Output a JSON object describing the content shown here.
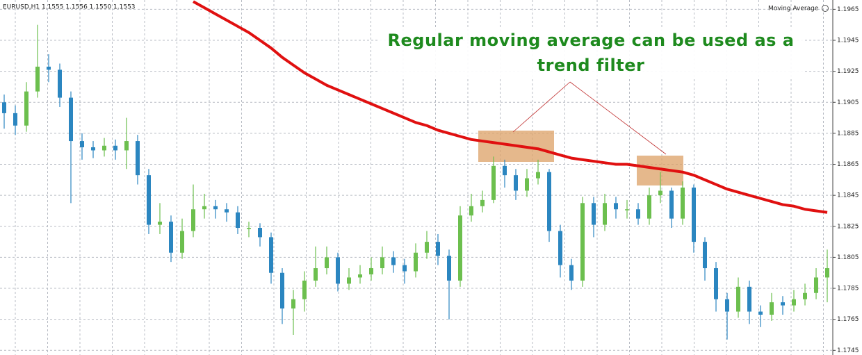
{
  "chart_data": {
    "type": "candlestick",
    "symbol_info": "EURUSD,H1  1.1555 1.1556 1.1550 1.1553",
    "indicator_label": "Moving Average",
    "annotation": "Regular moving average can be used as a trend filter",
    "annotation_color": "#1e8a1e",
    "up_color": "#6cbf4e",
    "down_color": "#2b86c0",
    "ma_color": "#e01010",
    "grid": true,
    "ylim": [
      1.1742,
      1.1971
    ],
    "yticks": [
      1.1965,
      1.1945,
      1.1925,
      1.1905,
      1.1885,
      1.1865,
      1.1845,
      1.1825,
      1.1805,
      1.1785,
      1.1765,
      1.1745
    ],
    "open": [
      1.1905,
      1.1898,
      1.189,
      1.1912,
      1.1928,
      1.1926,
      1.1908,
      1.188,
      1.1876,
      1.1874,
      1.1877,
      1.1874,
      1.188,
      1.1858,
      1.1826,
      1.1828,
      1.1808,
      1.1822,
      1.1836,
      1.1838,
      1.1836,
      1.1834,
      1.1824,
      1.1824,
      1.1818,
      1.1795,
      1.1772,
      1.1778,
      1.179,
      1.1798,
      1.1805,
      1.1788,
      1.1792,
      1.1794,
      1.1798,
      1.1805,
      1.18,
      1.1796,
      1.1808,
      1.1815,
      1.1806,
      1.179,
      1.1832,
      1.1838,
      1.1842,
      1.1864,
      1.1858,
      1.1848,
      1.1856,
      1.186,
      1.1822,
      1.18,
      1.179,
      1.184,
      1.1826,
      1.184,
      1.1836,
      1.1836,
      1.183,
      1.1845,
      1.1848,
      1.183,
      1.185,
      1.1815,
      1.1798,
      1.1778,
      1.177,
      1.1786,
      1.177,
      1.1768,
      1.1776,
      1.1774,
      1.1778,
      1.1782,
      1.1792
    ],
    "high": [
      1.191,
      1.1903,
      1.1918,
      1.1955,
      1.1936,
      1.193,
      1.1912,
      1.1885,
      1.188,
      1.1882,
      1.1881,
      1.1895,
      1.1884,
      1.1862,
      1.184,
      1.1832,
      1.183,
      1.1852,
      1.1846,
      1.1842,
      1.184,
      1.1838,
      1.1828,
      1.1827,
      1.1821,
      1.1798,
      1.1784,
      1.1796,
      1.1812,
      1.1812,
      1.1808,
      1.1798,
      1.18,
      1.1805,
      1.1812,
      1.1809,
      1.1804,
      1.1814,
      1.1822,
      1.182,
      1.181,
      1.1838,
      1.1846,
      1.1848,
      1.187,
      1.1868,
      1.1862,
      1.1862,
      1.1868,
      1.1862,
      1.1826,
      1.1804,
      1.1844,
      1.1844,
      1.1846,
      1.1844,
      1.1842,
      1.184,
      1.185,
      1.186,
      1.185,
      1.1854,
      1.1852,
      1.1818,
      1.1802,
      1.1782,
      1.1792,
      1.179,
      1.1774,
      1.1782,
      1.178,
      1.1784,
      1.1788,
      1.1798,
      1.181
    ],
    "low": [
      1.1888,
      1.1884,
      1.1886,
      1.1908,
      1.1918,
      1.1902,
      1.184,
      1.1868,
      1.1869,
      1.187,
      1.1868,
      1.1862,
      1.1852,
      1.182,
      1.182,
      1.1802,
      1.1804,
      1.1818,
      1.183,
      1.183,
      1.1828,
      1.182,
      1.1818,
      1.1812,
      1.1788,
      1.1762,
      1.1755,
      1.177,
      1.1786,
      1.1794,
      1.1783,
      1.1784,
      1.1788,
      1.179,
      1.1794,
      1.1795,
      1.1788,
      1.1792,
      1.1804,
      1.18,
      1.1765,
      1.1786,
      1.1828,
      1.1834,
      1.184,
      1.185,
      1.1842,
      1.1844,
      1.1852,
      1.1815,
      1.1792,
      1.1784,
      1.1786,
      1.1818,
      1.1822,
      1.183,
      1.183,
      1.1826,
      1.1826,
      1.184,
      1.1824,
      1.1826,
      1.1808,
      1.179,
      1.177,
      1.1752,
      1.1766,
      1.1762,
      1.176,
      1.1764,
      1.1768,
      1.177,
      1.1774,
      1.1778,
      1.1776
    ],
    "close": [
      1.1898,
      1.189,
      1.1912,
      1.1928,
      1.1926,
      1.1908,
      1.188,
      1.1876,
      1.1874,
      1.1877,
      1.1874,
      1.188,
      1.1858,
      1.1826,
      1.1828,
      1.1808,
      1.1822,
      1.1836,
      1.1838,
      1.1836,
      1.1834,
      1.1824,
      1.1824,
      1.1818,
      1.1795,
      1.1772,
      1.1778,
      1.179,
      1.1798,
      1.1805,
      1.1788,
      1.1792,
      1.1794,
      1.1798,
      1.1805,
      1.18,
      1.1796,
      1.1808,
      1.1815,
      1.1806,
      1.179,
      1.1832,
      1.1838,
      1.1842,
      1.1864,
      1.1858,
      1.1848,
      1.1856,
      1.186,
      1.1822,
      1.18,
      1.179,
      1.184,
      1.1826,
      1.184,
      1.1836,
      1.1836,
      1.183,
      1.1845,
      1.1848,
      1.183,
      1.185,
      1.1815,
      1.1798,
      1.1778,
      1.177,
      1.1786,
      1.177,
      1.1768,
      1.1776,
      1.1774,
      1.1778,
      1.1782,
      1.1792,
      1.1798
    ],
    "ma": [
      null,
      null,
      null,
      null,
      null,
      null,
      null,
      null,
      null,
      null,
      null,
      null,
      null,
      null,
      null,
      null,
      null,
      1.197,
      1.1966,
      1.1962,
      1.1958,
      1.1954,
      1.195,
      1.1945,
      1.194,
      1.1934,
      1.1929,
      1.1924,
      1.192,
      1.1916,
      1.1913,
      1.191,
      1.1907,
      1.1904,
      1.1901,
      1.1898,
      1.1895,
      1.1892,
      1.189,
      1.1887,
      1.1885,
      1.1883,
      1.1881,
      1.188,
      1.1879,
      1.1878,
      1.1877,
      1.1876,
      1.1875,
      1.1873,
      1.1871,
      1.1869,
      1.1868,
      1.1867,
      1.1866,
      1.1865,
      1.1865,
      1.1864,
      1.1863,
      1.1862,
      1.1861,
      1.186,
      1.1858,
      1.1855,
      1.1852,
      1.1849,
      1.1847,
      1.1845,
      1.1843,
      1.1841,
      1.1839,
      1.1838,
      1.1836,
      1.1835,
      1.1834
    ]
  }
}
